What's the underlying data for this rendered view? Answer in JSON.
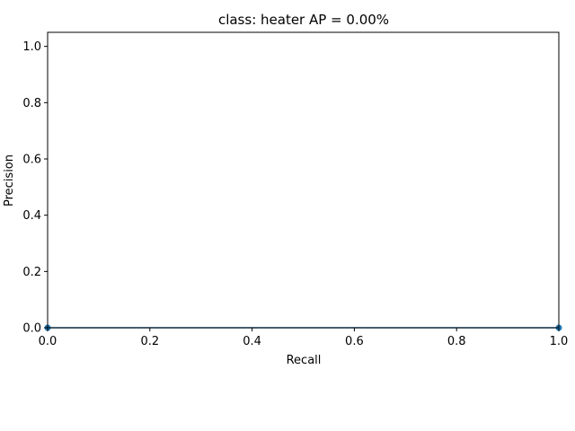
{
  "chart_data": {
    "type": "line",
    "title": "class: heater AP = 0.00%",
    "xlabel": "Recall",
    "ylabel": "Precision",
    "xlim": [
      0.0,
      1.0
    ],
    "ylim": [
      0.0,
      1.05
    ],
    "xticks": [
      "0.0",
      "0.2",
      "0.4",
      "0.6",
      "0.8",
      "1.0"
    ],
    "yticks": [
      "0.0",
      "0.2",
      "0.4",
      "0.6",
      "0.8",
      "1.0"
    ],
    "grid": false,
    "series": [
      {
        "x": [
          0.0,
          1.0
        ],
        "y": [
          0.0,
          0.0
        ],
        "marker": "o",
        "color": "#1f77b4"
      }
    ]
  }
}
